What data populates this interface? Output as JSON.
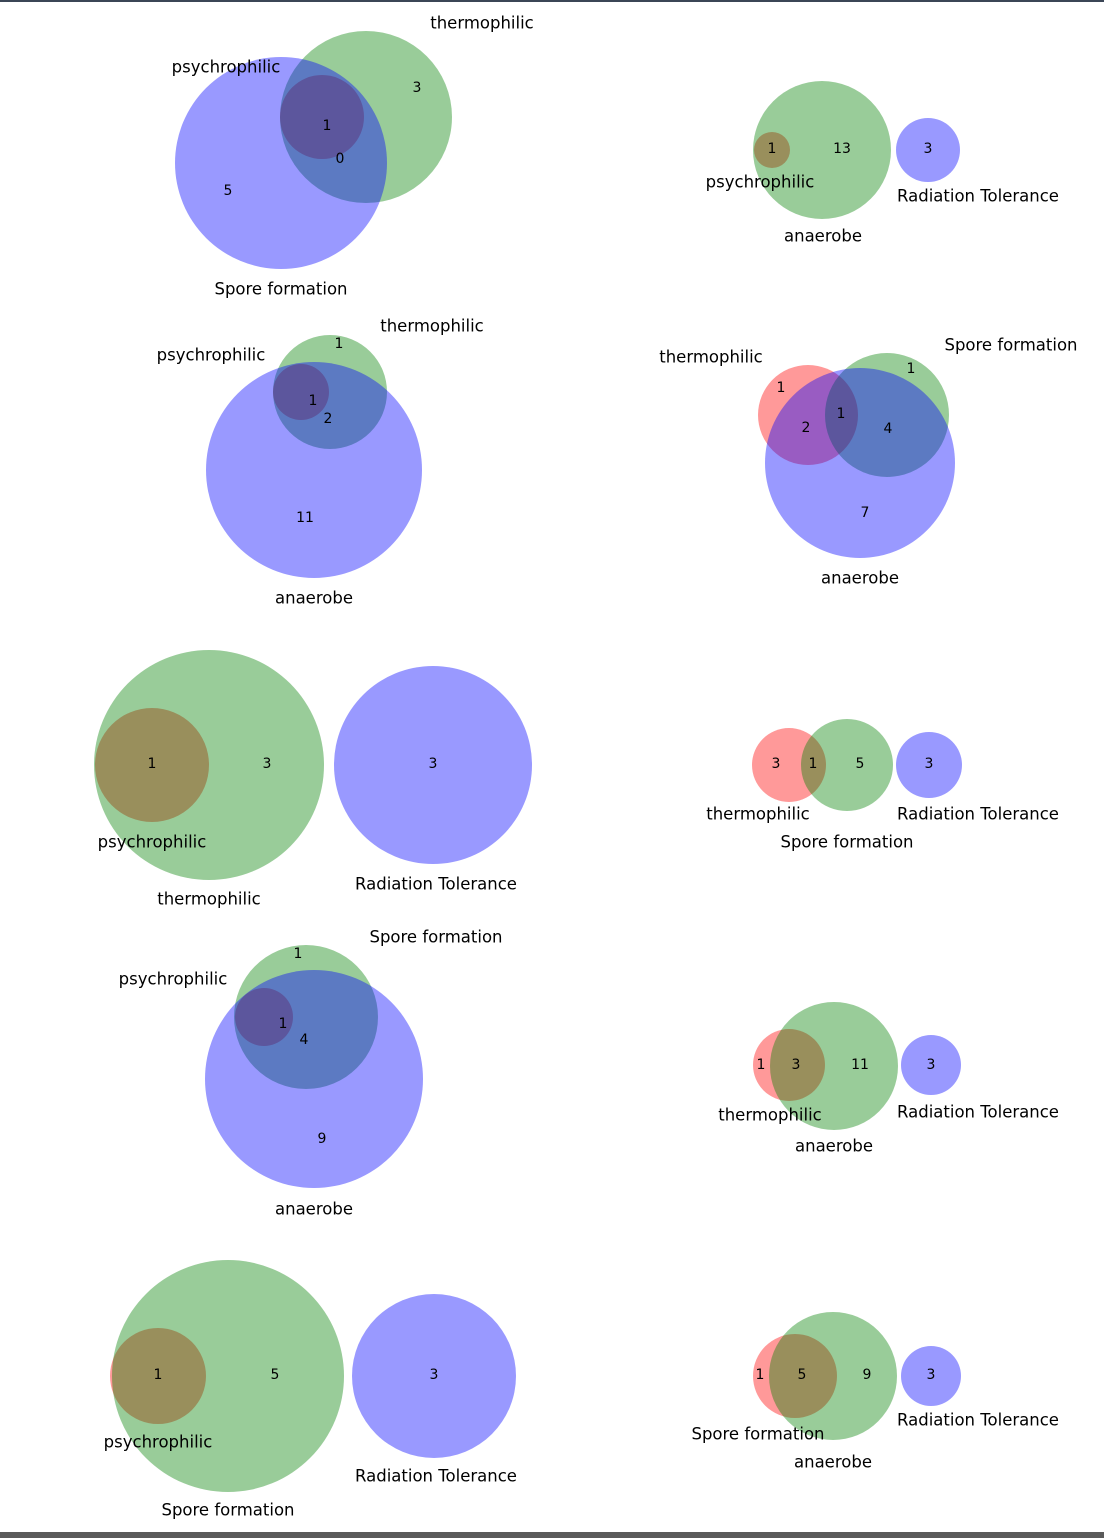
{
  "colors": {
    "set_a": "#ff0000",
    "set_b": "#008000",
    "set_c": "#0000ff"
  },
  "chart_data": [
    {
      "type": "venn3",
      "sets": [
        "psychrophilic",
        "thermophilic",
        "Spore formation"
      ],
      "regions": [
        {
          "id": "B",
          "value": "3"
        },
        {
          "id": "ABC",
          "value": "1"
        },
        {
          "id": "BC",
          "value": "0"
        },
        {
          "id": "C",
          "value": "5"
        }
      ]
    },
    {
      "type": "venn3",
      "sets": [
        "psychrophilic",
        "anaerobe",
        "Radiation Tolerance"
      ],
      "regions": [
        {
          "id": "AB",
          "value": "1"
        },
        {
          "id": "B",
          "value": "13"
        },
        {
          "id": "C",
          "value": "3"
        }
      ]
    },
    {
      "type": "venn3",
      "sets": [
        "psychrophilic",
        "thermophilic",
        "anaerobe"
      ],
      "regions": [
        {
          "id": "B",
          "value": "1"
        },
        {
          "id": "ABC",
          "value": "1"
        },
        {
          "id": "BC",
          "value": "2"
        },
        {
          "id": "C",
          "value": "11"
        }
      ]
    },
    {
      "type": "venn3",
      "sets": [
        "thermophilic",
        "Spore formation",
        "anaerobe"
      ],
      "regions": [
        {
          "id": "A",
          "value": "1"
        },
        {
          "id": "B",
          "value": "1"
        },
        {
          "id": "ABC",
          "value": "1"
        },
        {
          "id": "AC",
          "value": "2"
        },
        {
          "id": "BC",
          "value": "4"
        },
        {
          "id": "C",
          "value": "7"
        }
      ]
    },
    {
      "type": "venn3",
      "sets": [
        "psychrophilic",
        "thermophilic",
        "Radiation Tolerance"
      ],
      "regions": [
        {
          "id": "AB",
          "value": "1"
        },
        {
          "id": "B",
          "value": "3"
        },
        {
          "id": "C",
          "value": "3"
        }
      ]
    },
    {
      "type": "venn3",
      "sets": [
        "thermophilic",
        "Spore formation",
        "Radiation Tolerance"
      ],
      "regions": [
        {
          "id": "A",
          "value": "3"
        },
        {
          "id": "AB",
          "value": "1"
        },
        {
          "id": "B",
          "value": "5"
        },
        {
          "id": "C",
          "value": "3"
        }
      ]
    },
    {
      "type": "venn3",
      "sets": [
        "psychrophilic",
        "Spore formation",
        "anaerobe"
      ],
      "regions": [
        {
          "id": "B",
          "value": "1"
        },
        {
          "id": "ABC",
          "value": "1"
        },
        {
          "id": "BC",
          "value": "4"
        },
        {
          "id": "C",
          "value": "9"
        }
      ]
    },
    {
      "type": "venn3",
      "sets": [
        "thermophilic",
        "anaerobe",
        "Radiation Tolerance"
      ],
      "regions": [
        {
          "id": "A",
          "value": "1"
        },
        {
          "id": "AB",
          "value": "3"
        },
        {
          "id": "B",
          "value": "11"
        },
        {
          "id": "C",
          "value": "3"
        }
      ]
    },
    {
      "type": "venn3",
      "sets": [
        "psychrophilic",
        "Spore formation",
        "Radiation Tolerance"
      ],
      "regions": [
        {
          "id": "AB",
          "value": "1"
        },
        {
          "id": "B",
          "value": "5"
        },
        {
          "id": "C",
          "value": "3"
        }
      ]
    },
    {
      "type": "venn3",
      "sets": [
        "Spore formation",
        "anaerobe",
        "Radiation Tolerance"
      ],
      "regions": [
        {
          "id": "A",
          "value": "1"
        },
        {
          "id": "AB",
          "value": "5"
        },
        {
          "id": "B",
          "value": "9"
        },
        {
          "id": "C",
          "value": "3"
        }
      ]
    }
  ]
}
